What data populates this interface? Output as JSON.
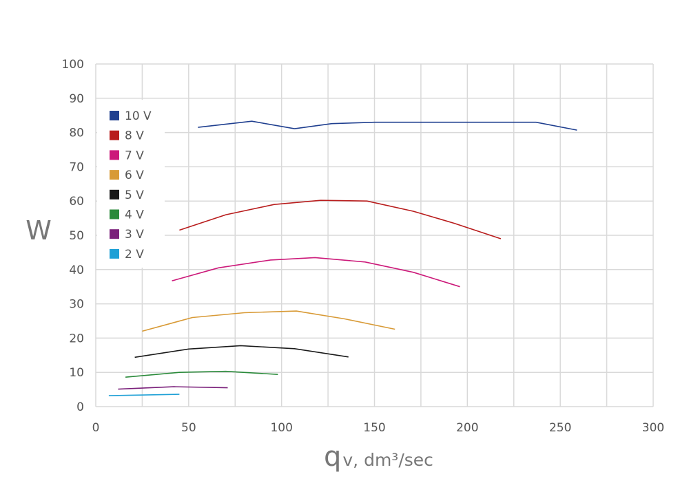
{
  "chart_data": {
    "type": "line",
    "ylabel": "W",
    "xlabel": {
      "symbol": "q",
      "rest": "v, dm³/sec"
    },
    "xlim": [
      0,
      300
    ],
    "ylim": [
      0,
      100
    ],
    "xticks": [
      "0",
      "50",
      "100",
      "150",
      "200",
      "250",
      "300"
    ],
    "yticks": [
      "0",
      "10",
      "20",
      "30",
      "40",
      "50",
      "60",
      "70",
      "80",
      "90",
      "100"
    ],
    "grid": true,
    "legend_position": "top-left",
    "series": [
      {
        "name": "10 V",
        "color": "#1f3f8f",
        "points": [
          [
            55,
            81.5
          ],
          [
            84,
            83.3
          ],
          [
            107,
            81.1
          ],
          [
            127,
            82.6
          ],
          [
            150,
            83
          ],
          [
            175,
            83
          ],
          [
            200,
            83
          ],
          [
            237,
            83
          ],
          [
            259,
            80.7
          ]
        ]
      },
      {
        "name": "8 V",
        "color": "#b81c1c",
        "points": [
          [
            45,
            51.5
          ],
          [
            70,
            56
          ],
          [
            96,
            59
          ],
          [
            121,
            60.2
          ],
          [
            146,
            60
          ],
          [
            171,
            57
          ],
          [
            193,
            53.5
          ],
          [
            218,
            49
          ]
        ]
      },
      {
        "name": "7 V",
        "color": "#cc1a7a",
        "points": [
          [
            41,
            36.7
          ],
          [
            66,
            40.5
          ],
          [
            94,
            42.8
          ],
          [
            118,
            43.5
          ],
          [
            145,
            42.2
          ],
          [
            171,
            39.2
          ],
          [
            196,
            35
          ]
        ]
      },
      {
        "name": "6 V",
        "color": "#d89a36",
        "points": [
          [
            25,
            22
          ],
          [
            52,
            26
          ],
          [
            80,
            27.4
          ],
          [
            108,
            27.9
          ],
          [
            134,
            25.6
          ],
          [
            161,
            22.6
          ]
        ]
      },
      {
        "name": "5 V",
        "color": "#1a1a1a",
        "points": [
          [
            21,
            14.4
          ],
          [
            50,
            16.8
          ],
          [
            78,
            17.8
          ],
          [
            107,
            16.9
          ],
          [
            136,
            14.5
          ]
        ]
      },
      {
        "name": "4 V",
        "color": "#2a8a3a",
        "points": [
          [
            16,
            8.6
          ],
          [
            45,
            10
          ],
          [
            70,
            10.3
          ],
          [
            98,
            9.4
          ]
        ]
      },
      {
        "name": "3 V",
        "color": "#7a1f7a",
        "points": [
          [
            12,
            5.1
          ],
          [
            42,
            5.8
          ],
          [
            71,
            5.5
          ]
        ]
      },
      {
        "name": "2 V",
        "color": "#1ea0d6",
        "points": [
          [
            7,
            3.2
          ],
          [
            45,
            3.6
          ]
        ]
      }
    ]
  }
}
